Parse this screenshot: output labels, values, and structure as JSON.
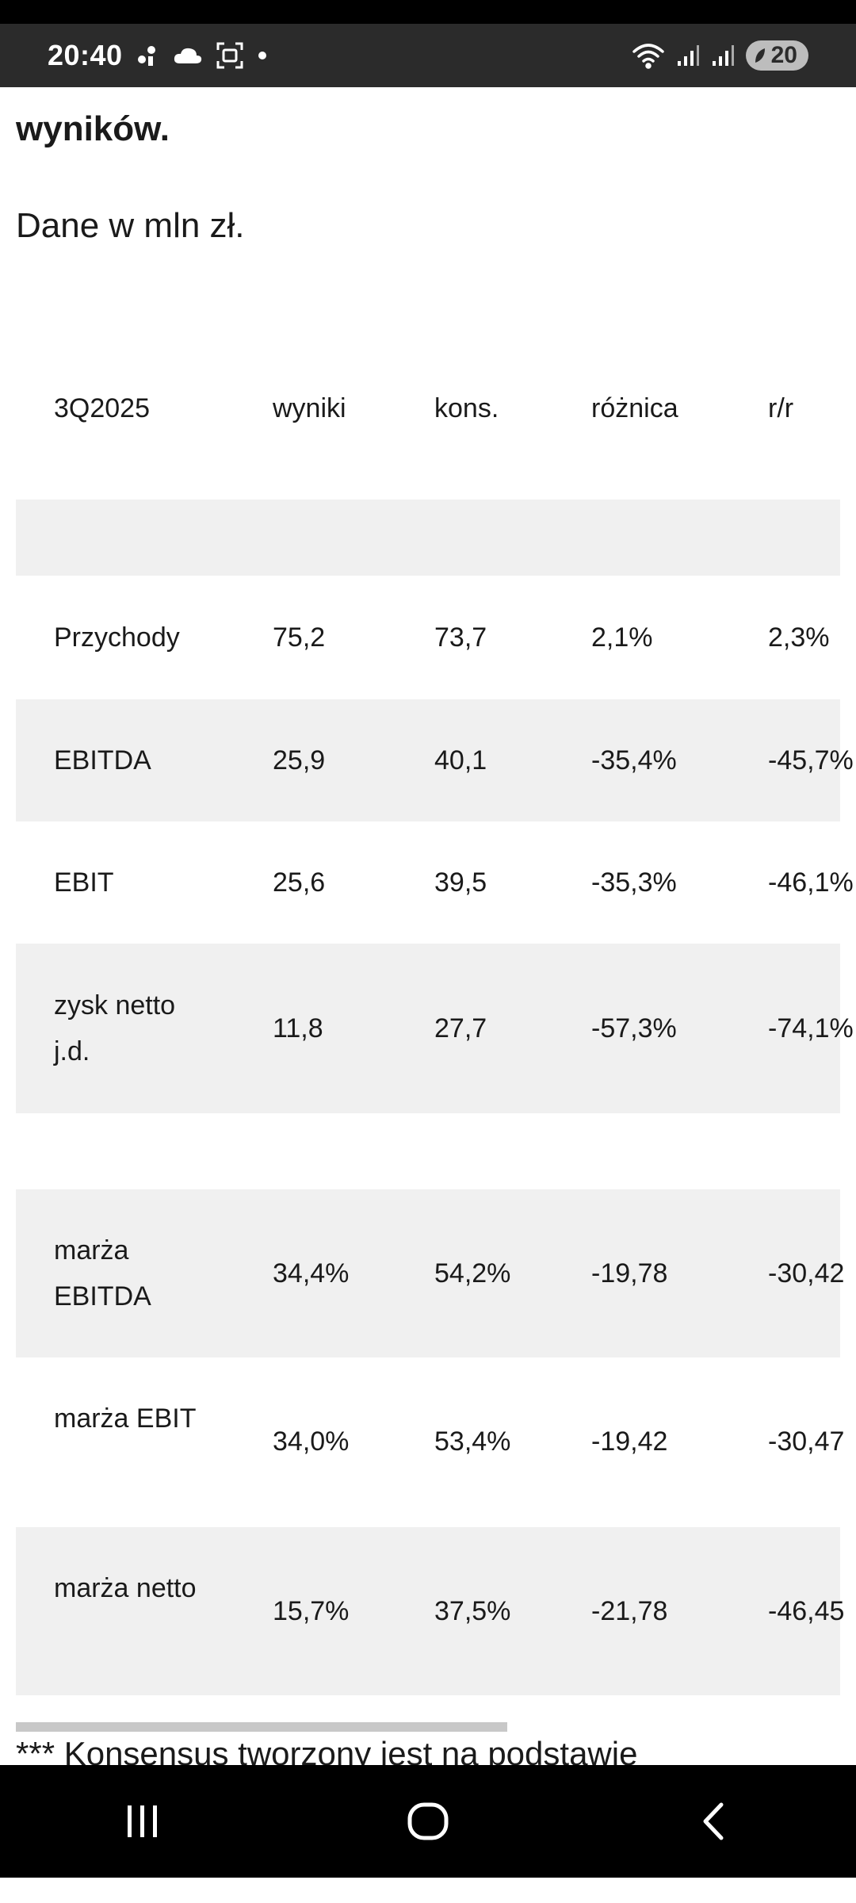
{
  "status_bar": {
    "time": "20:40",
    "icons": [
      "notification-dot-icon",
      "cloud-icon",
      "screenshot-icon",
      "dot-icon"
    ],
    "right_icons": [
      "wifi-icon",
      "signal-icon",
      "signal-icon"
    ],
    "battery": "20"
  },
  "article": {
    "heading_tail": "wyników.",
    "intro": "Dane w mln zł.",
    "footnote": "*** Konsensus tworzony jest na podstawie"
  },
  "table": {
    "headers": [
      "3Q2025",
      "wyniki",
      "kons.",
      "różnica",
      "r/r"
    ],
    "rows": [
      {
        "label": "Przychody",
        "wyniki": "75,2",
        "kons": "73,7",
        "roznica": "2,1%",
        "rr": "2,3%"
      },
      {
        "label": "EBITDA",
        "wyniki": "25,9",
        "kons": "40,1",
        "roznica": "-35,4%",
        "rr": "-45,7%"
      },
      {
        "label": "EBIT",
        "wyniki": "25,6",
        "kons": "39,5",
        "roznica": "-35,3%",
        "rr": "-46,1%"
      },
      {
        "label": "zysk netto j.d.",
        "wyniki": "11,8",
        "kons": "27,7",
        "roznica": "-57,3%",
        "rr": "-74,1%"
      },
      {
        "label": "marża EBITDA",
        "wyniki": "34,4%",
        "kons": "54,2%",
        "roznica": "-19,78",
        "rr": "-30,42"
      },
      {
        "label": "marża EBIT",
        "wyniki": "34,0%",
        "kons": "53,4%",
        "roznica": "-19,42",
        "rr": "-30,47"
      },
      {
        "label": "marża netto",
        "wyniki": "15,7%",
        "kons": "37,5%",
        "roznica": "-21,78",
        "rr": "-46,45"
      }
    ]
  },
  "navbar": {
    "buttons": [
      "recent-apps-icon",
      "home-icon",
      "back-icon"
    ]
  }
}
